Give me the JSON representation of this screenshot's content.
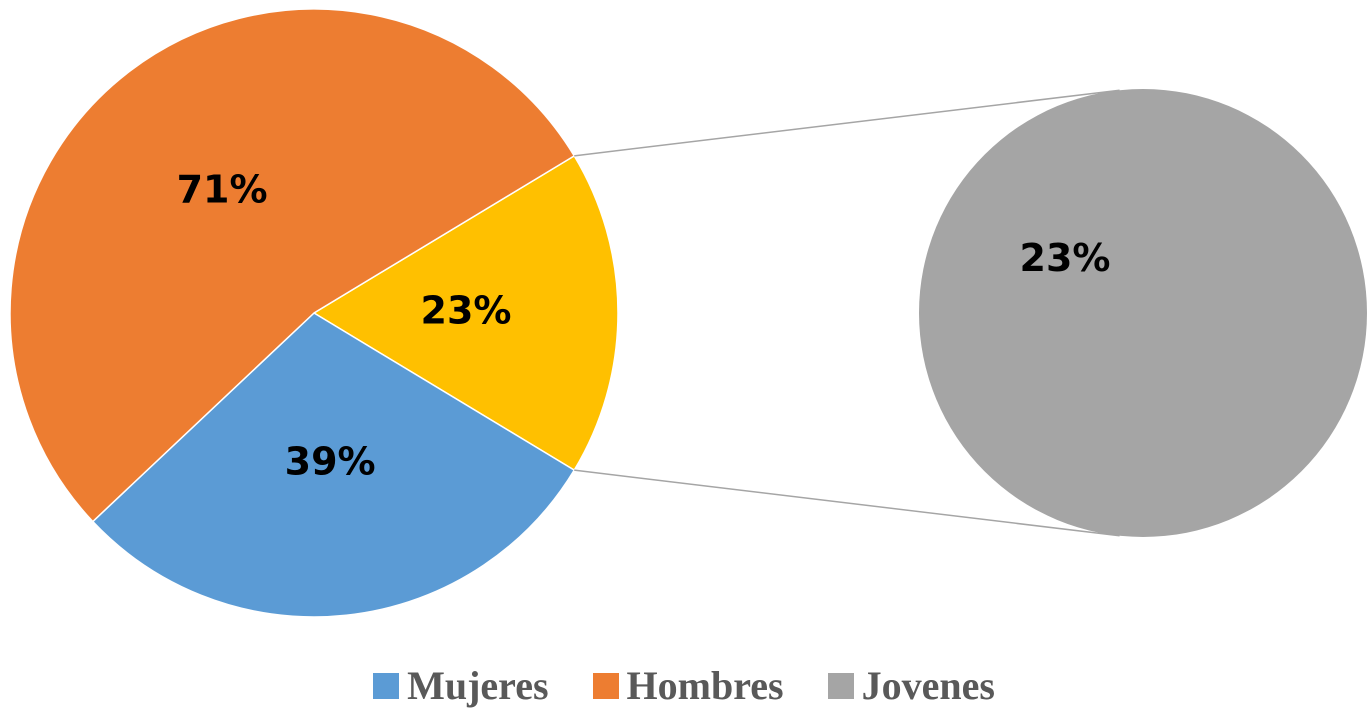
{
  "chart_data": {
    "type": "pie",
    "categories": [
      "Mujeres",
      "Hombres",
      "Jovenes"
    ],
    "values": [
      39,
      71,
      23
    ],
    "value_labels": [
      "39%",
      "71%",
      "23%"
    ],
    "colors": [
      "#5b9bd5",
      "#ed7d31",
      "#a5a5a5"
    ],
    "other_color": "#ffc000",
    "secondary_count": 1,
    "legend": "bottom"
  }
}
